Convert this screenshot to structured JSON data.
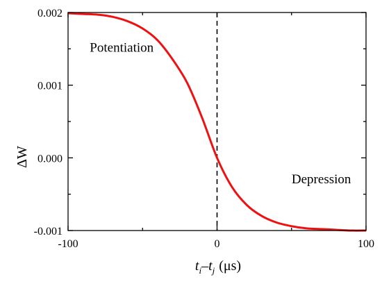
{
  "chart_data": {
    "type": "line",
    "title": "",
    "xlabel": "",
    "ylabel": "ΔW",
    "xlabel_parts": {
      "t": "t",
      "i": "i",
      "dash": "–",
      "j": "j",
      "unit": "(μs)"
    },
    "xlim": [
      -100,
      100
    ],
    "ylim": [
      -0.001,
      0.002
    ],
    "x_ticks": [
      -100,
      0,
      100
    ],
    "x_tick_labels": [
      "-100",
      "0",
      "100"
    ],
    "y_ticks": [
      -0.001,
      0,
      0.001,
      0.002
    ],
    "y_tick_labels": [
      "-0.001",
      "0.000",
      "0.001",
      "0.002"
    ],
    "grid": false,
    "legend": "none",
    "series": [
      {
        "color": "#ee1111",
        "x": [
          -100,
          -90,
          -80,
          -70,
          -60,
          -50,
          -40,
          -30,
          -20,
          -10,
          0,
          10,
          20,
          30,
          40,
          50,
          60,
          70,
          80,
          90,
          100
        ],
        "y": [
          0.00199,
          0.00198,
          0.00197,
          0.00194,
          0.00188,
          0.00178,
          0.00162,
          0.00136,
          0.00103,
          0.00055,
          0.0,
          -0.0004,
          -0.00065,
          -0.0008,
          -0.00089,
          -0.00094,
          -0.00097,
          -0.00098,
          -0.00099,
          -0.001,
          -0.001
        ]
      }
    ],
    "vline": {
      "x": 0,
      "style": "dashed",
      "color": "#000000"
    },
    "annotations": [
      {
        "text": "Potentiation",
        "x": -64,
        "y": 0.00146
      },
      {
        "text": "Depression",
        "x": 70,
        "y": -0.00035
      }
    ]
  }
}
